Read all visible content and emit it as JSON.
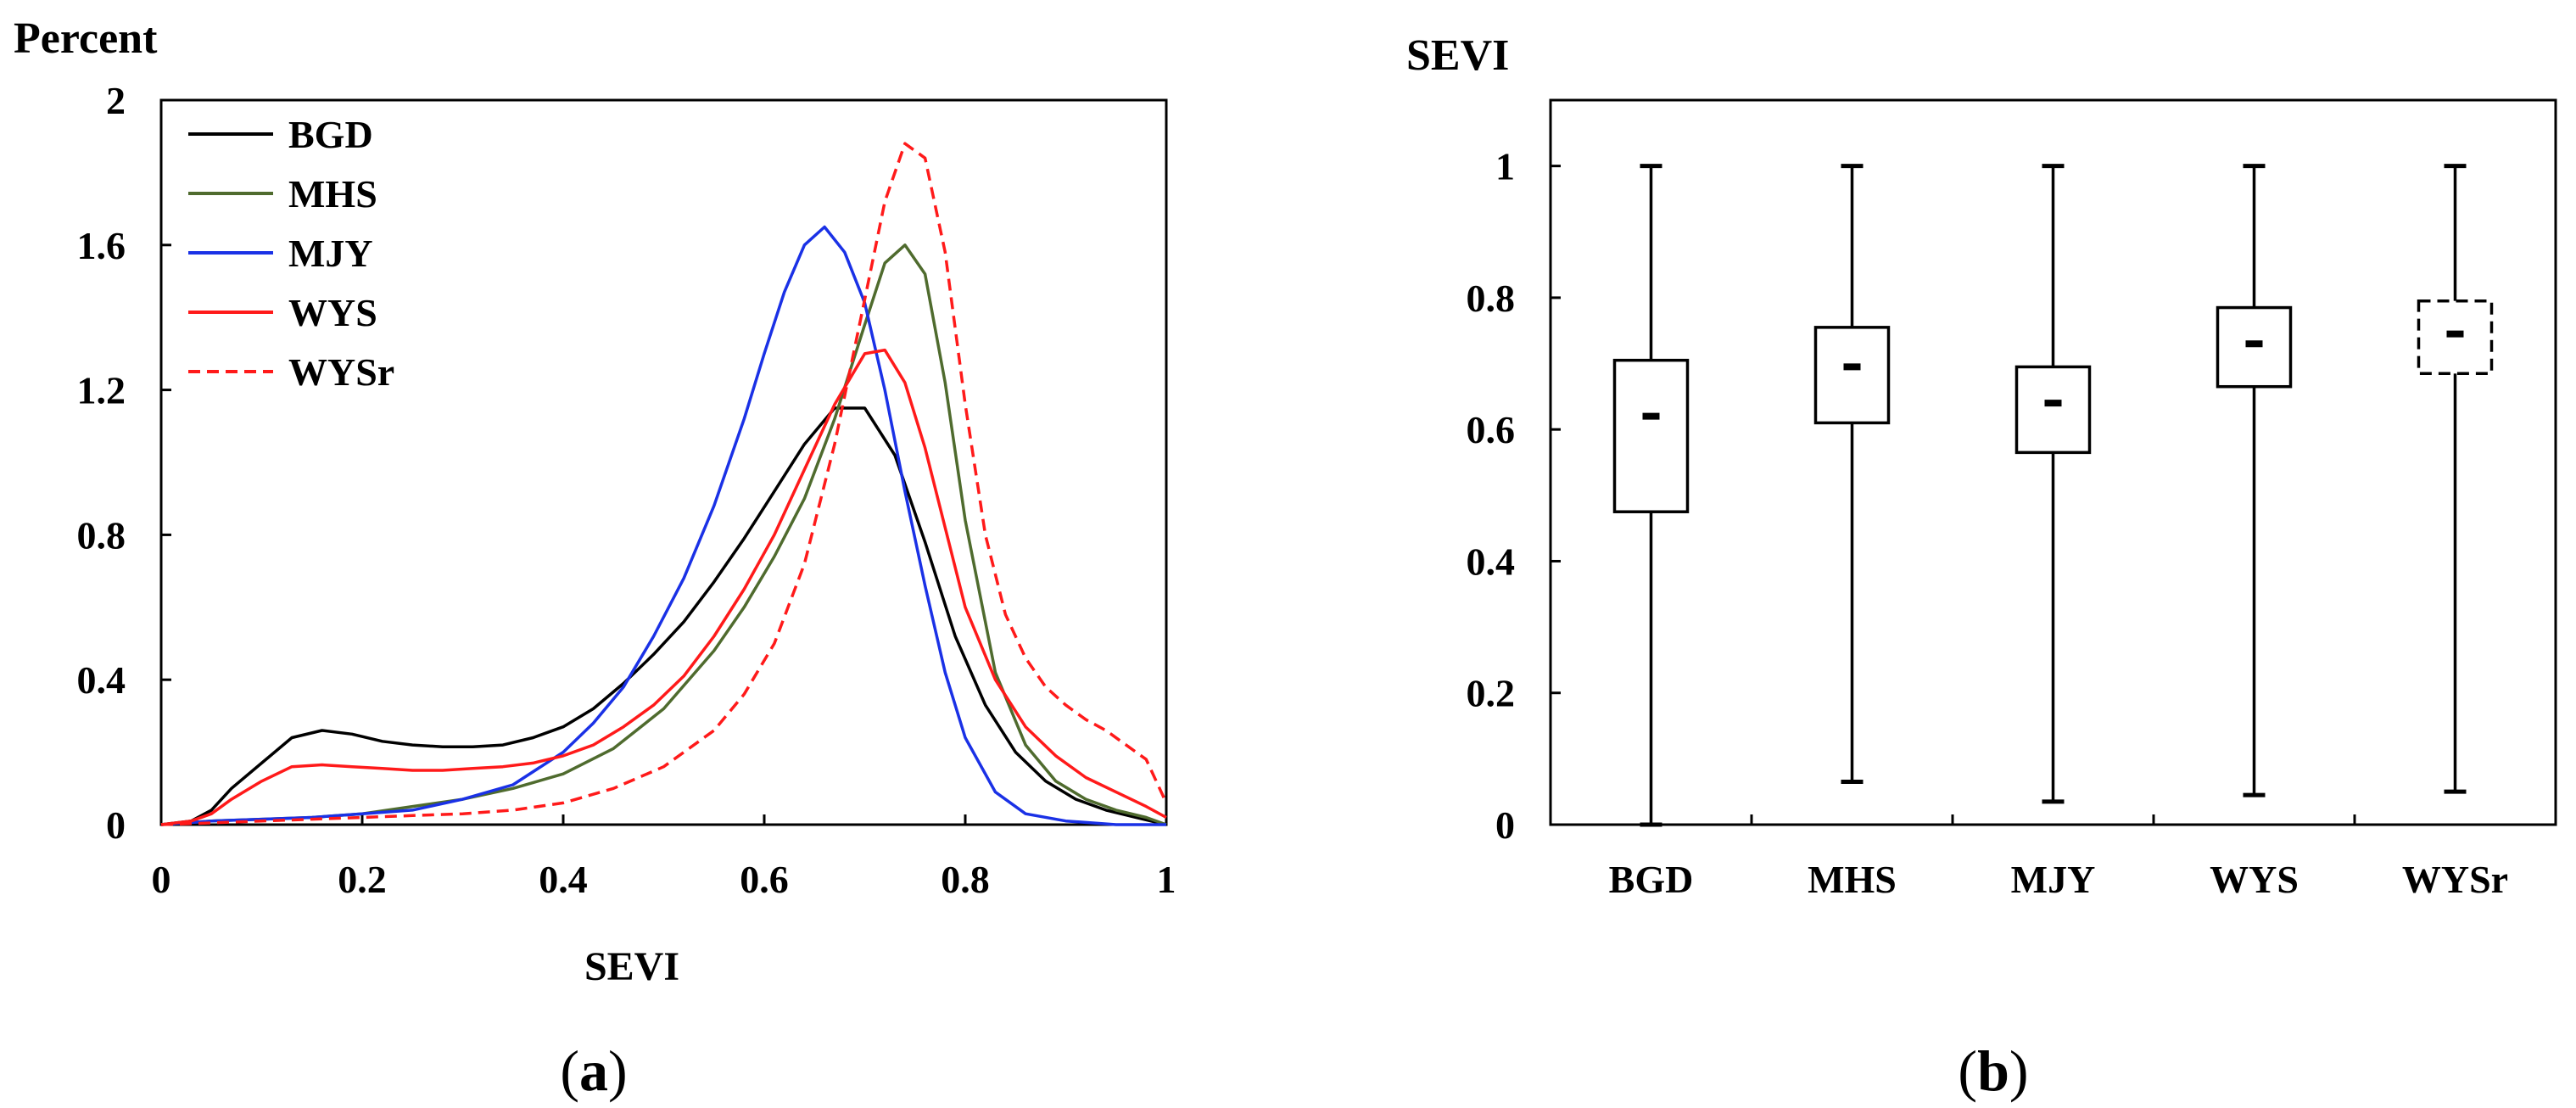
{
  "chart_data": [
    {
      "type": "line",
      "panel": "(a)",
      "panel_label": "a",
      "ylabel": "Percent",
      "xlabel": "SEVI",
      "xlim": [
        0,
        1
      ],
      "ylim": [
        0,
        2
      ],
      "x_ticks": [
        0,
        0.2,
        0.4,
        0.6,
        0.8,
        1
      ],
      "x_tick_labels": [
        "0",
        "0.2",
        "0.4",
        "0.6",
        "0.8",
        "1"
      ],
      "y_ticks": [
        0,
        0.4,
        0.8,
        1.2,
        1.6,
        2
      ],
      "y_tick_labels": [
        "0",
        "0.4",
        "0.8",
        "1.2",
        "1.6",
        "2"
      ],
      "legend_position": "top-left",
      "series": [
        {
          "name": "BGD",
          "color": "#000000",
          "dash": "solid",
          "x": [
            0,
            0.03,
            0.05,
            0.07,
            0.1,
            0.13,
            0.16,
            0.19,
            0.22,
            0.25,
            0.28,
            0.31,
            0.34,
            0.37,
            0.4,
            0.43,
            0.46,
            0.49,
            0.52,
            0.55,
            0.58,
            0.61,
            0.64,
            0.67,
            0.7,
            0.73,
            0.76,
            0.79,
            0.82,
            0.85,
            0.88,
            0.91,
            0.94,
            0.97,
            1.0
          ],
          "y": [
            0,
            0.01,
            0.04,
            0.1,
            0.17,
            0.24,
            0.26,
            0.25,
            0.23,
            0.22,
            0.215,
            0.215,
            0.22,
            0.24,
            0.27,
            0.32,
            0.39,
            0.47,
            0.56,
            0.67,
            0.79,
            0.92,
            1.05,
            1.15,
            1.15,
            1.02,
            0.78,
            0.52,
            0.33,
            0.2,
            0.12,
            0.07,
            0.04,
            0.02,
            0.0
          ]
        },
        {
          "name": "MHS",
          "color": "#4f6b2e",
          "dash": "solid",
          "x": [
            0,
            0.05,
            0.1,
            0.15,
            0.2,
            0.25,
            0.3,
            0.35,
            0.4,
            0.45,
            0.5,
            0.55,
            0.58,
            0.61,
            0.64,
            0.67,
            0.7,
            0.72,
            0.74,
            0.76,
            0.78,
            0.8,
            0.83,
            0.86,
            0.89,
            0.92,
            0.95,
            0.98,
            1.0
          ],
          "y": [
            0,
            0.01,
            0.015,
            0.02,
            0.03,
            0.05,
            0.07,
            0.1,
            0.14,
            0.21,
            0.32,
            0.48,
            0.6,
            0.74,
            0.9,
            1.12,
            1.38,
            1.55,
            1.6,
            1.52,
            1.22,
            0.84,
            0.42,
            0.22,
            0.12,
            0.07,
            0.04,
            0.02,
            0.0
          ]
        },
        {
          "name": "MJY",
          "color": "#1a31e6",
          "dash": "solid",
          "x": [
            0,
            0.05,
            0.1,
            0.15,
            0.2,
            0.25,
            0.3,
            0.35,
            0.4,
            0.43,
            0.46,
            0.49,
            0.52,
            0.55,
            0.58,
            0.6,
            0.62,
            0.64,
            0.66,
            0.68,
            0.7,
            0.72,
            0.74,
            0.76,
            0.78,
            0.8,
            0.83,
            0.86,
            0.9,
            0.95,
            1.0
          ],
          "y": [
            0,
            0.01,
            0.015,
            0.02,
            0.03,
            0.04,
            0.07,
            0.11,
            0.2,
            0.28,
            0.38,
            0.52,
            0.68,
            0.88,
            1.12,
            1.3,
            1.47,
            1.6,
            1.65,
            1.58,
            1.44,
            1.2,
            0.92,
            0.66,
            0.42,
            0.24,
            0.09,
            0.03,
            0.01,
            0.0,
            0.0
          ]
        },
        {
          "name": "WYS",
          "color": "#ff1a1a",
          "dash": "solid",
          "x": [
            0,
            0.03,
            0.05,
            0.07,
            0.1,
            0.13,
            0.16,
            0.19,
            0.22,
            0.25,
            0.28,
            0.31,
            0.34,
            0.37,
            0.4,
            0.43,
            0.46,
            0.49,
            0.52,
            0.55,
            0.58,
            0.61,
            0.64,
            0.67,
            0.7,
            0.72,
            0.74,
            0.76,
            0.78,
            0.8,
            0.83,
            0.86,
            0.89,
            0.92,
            0.95,
            0.98,
            1.0
          ],
          "y": [
            0,
            0.01,
            0.03,
            0.07,
            0.12,
            0.16,
            0.165,
            0.16,
            0.155,
            0.15,
            0.15,
            0.155,
            0.16,
            0.17,
            0.19,
            0.22,
            0.27,
            0.33,
            0.41,
            0.52,
            0.65,
            0.8,
            0.98,
            1.16,
            1.3,
            1.31,
            1.22,
            1.04,
            0.82,
            0.6,
            0.4,
            0.27,
            0.19,
            0.13,
            0.09,
            0.05,
            0.02
          ]
        },
        {
          "name": "WYSr",
          "color": "#ff1a1a",
          "dash": "dashed",
          "x": [
            0,
            0.05,
            0.1,
            0.15,
            0.2,
            0.25,
            0.3,
            0.35,
            0.4,
            0.45,
            0.5,
            0.55,
            0.58,
            0.61,
            0.64,
            0.67,
            0.7,
            0.72,
            0.74,
            0.76,
            0.78,
            0.8,
            0.82,
            0.84,
            0.86,
            0.88,
            0.9,
            0.92,
            0.94,
            0.96,
            0.98,
            1.0
          ],
          "y": [
            0,
            0.005,
            0.01,
            0.015,
            0.02,
            0.025,
            0.03,
            0.04,
            0.06,
            0.1,
            0.16,
            0.26,
            0.36,
            0.5,
            0.72,
            1.05,
            1.45,
            1.72,
            1.88,
            1.84,
            1.58,
            1.16,
            0.8,
            0.58,
            0.46,
            0.38,
            0.33,
            0.29,
            0.26,
            0.22,
            0.18,
            0.06
          ]
        }
      ]
    },
    {
      "type": "box",
      "panel": "(b)",
      "panel_label": "b",
      "ylabel": "SEVI",
      "xlabel": "",
      "ylim": [
        0,
        1.1
      ],
      "y_ticks": [
        0,
        0.2,
        0.4,
        0.6,
        0.8,
        1
      ],
      "y_tick_labels": [
        "0",
        "0.2",
        "0.4",
        "0.6",
        "0.8",
        "1"
      ],
      "categories": [
        "BGD",
        "MHS",
        "MJY",
        "WYS",
        "WYSr"
      ],
      "boxes": [
        {
          "name": "BGD",
          "min": 0.0,
          "q1": 0.475,
          "median": 0.62,
          "q3": 0.705,
          "max": 1.0,
          "dashed": false
        },
        {
          "name": "MHS",
          "min": 0.065,
          "q1": 0.61,
          "median": 0.695,
          "q3": 0.755,
          "max": 1.0,
          "dashed": false
        },
        {
          "name": "MJY",
          "min": 0.035,
          "q1": 0.565,
          "median": 0.64,
          "q3": 0.695,
          "max": 1.0,
          "dashed": false
        },
        {
          "name": "WYS",
          "min": 0.045,
          "q1": 0.665,
          "median": 0.73,
          "q3": 0.785,
          "max": 1.0,
          "dashed": false
        },
        {
          "name": "WYSr",
          "min": 0.05,
          "q1": 0.685,
          "median": 0.745,
          "q3": 0.795,
          "max": 1.0,
          "dashed": true
        }
      ]
    }
  ]
}
